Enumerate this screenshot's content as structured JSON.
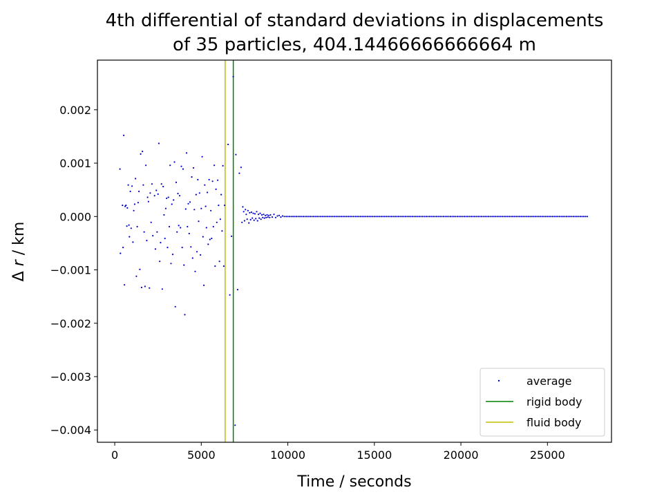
{
  "chart_data": {
    "type": "scatter",
    "title_lines": [
      "4th differential of standard deviations in displacements",
      "of 35 particles, 404.14466666666664 m"
    ],
    "xlabel": "Time / seconds",
    "ylabel_prefix": "Δ ",
    "ylabel_var": "r",
    "ylabel_suffix": " / km",
    "xlim": [
      -1000,
      28700
    ],
    "ylim": [
      -0.00423,
      0.00293
    ],
    "xticks": [
      0,
      5000,
      10000,
      15000,
      20000,
      25000
    ],
    "xtick_labels": [
      "0",
      "5000",
      "10000",
      "15000",
      "20000",
      "25000"
    ],
    "yticks": [
      0.002,
      0.001,
      0.0,
      -0.001,
      -0.002,
      -0.003,
      -0.004
    ],
    "ytick_labels": [
      "0.002",
      "0.001",
      "0.000",
      "−0.001",
      "−0.002",
      "−0.003",
      "−0.004"
    ],
    "grid": false,
    "legend_position": "lower-right",
    "series": [
      {
        "name": "average",
        "kind": "points",
        "color": "#0000cc",
        "points": [
          [
            300,
            0.00089
          ],
          [
            330,
            -0.00069
          ],
          [
            450,
            0.00021
          ],
          [
            480,
            -0.00058
          ],
          [
            520,
            0.00152
          ],
          [
            560,
            -0.00128
          ],
          [
            600,
            0.00019
          ],
          [
            650,
            0.00021
          ],
          [
            700,
            -0.00018
          ],
          [
            730,
            0.00016
          ],
          [
            780,
            0.00059
          ],
          [
            820,
            -0.00016
          ],
          [
            850,
            -0.00038
          ],
          [
            900,
            0.00047
          ],
          [
            950,
            -0.00022
          ],
          [
            1000,
            0.00057
          ],
          [
            1050,
            -0.00048
          ],
          [
            1100,
            0.00011
          ],
          [
            1150,
            0.00023
          ],
          [
            1200,
            0.00071
          ],
          [
            1250,
            -0.00112
          ],
          [
            1300,
            -0.00019
          ],
          [
            1350,
            0.00026
          ],
          [
            1400,
            0.00047
          ],
          [
            1450,
            -0.00099
          ],
          [
            1500,
            0.00117
          ],
          [
            1550,
            -0.00133
          ],
          [
            1600,
            0.00122
          ],
          [
            1650,
            0.00059
          ],
          [
            1700,
            -0.00029
          ],
          [
            1750,
            -0.00131
          ],
          [
            1800,
            0.00096
          ],
          [
            1850,
            -0.00045
          ],
          [
            1900,
            0.00036
          ],
          [
            1950,
            0.00028
          ],
          [
            2000,
            -0.00134
          ],
          [
            2050,
            0.00044
          ],
          [
            2100,
            -0.00011
          ],
          [
            2150,
            0.00061
          ],
          [
            2200,
            -0.00036
          ],
          [
            2300,
            0.00039
          ],
          [
            2350,
            -0.00061
          ],
          [
            2400,
            0.00049
          ],
          [
            2450,
            -0.00029
          ],
          [
            2500,
            0.00042
          ],
          [
            2550,
            0.00137
          ],
          [
            2600,
            -0.00084
          ],
          [
            2650,
            -0.00049
          ],
          [
            2700,
            0.00061
          ],
          [
            2750,
            -0.00136
          ],
          [
            2800,
            0.00056
          ],
          [
            2850,
            3e-05
          ],
          [
            2900,
            -0.00041
          ],
          [
            2950,
            0.00015
          ],
          [
            3000,
            0.00034
          ],
          [
            3050,
            -0.00058
          ],
          [
            3100,
            0.00036
          ],
          [
            3150,
            -0.00019
          ],
          [
            3200,
            0.00096
          ],
          [
            3250,
            -0.00088
          ],
          [
            3300,
            0.00023
          ],
          [
            3350,
            -0.00071
          ],
          [
            3400,
            0.00031
          ],
          [
            3450,
            0.00102
          ],
          [
            3500,
            -0.00169
          ],
          [
            3550,
            0.00064
          ],
          [
            3600,
            -0.00029
          ],
          [
            3650,
            0.00043
          ],
          [
            3700,
            -0.00017
          ],
          [
            3750,
            0.00039
          ],
          [
            3800,
            -0.00021
          ],
          [
            3850,
            0.00094
          ],
          [
            3900,
            -0.00058
          ],
          [
            3950,
            0.00089
          ],
          [
            4000,
            -0.00091
          ],
          [
            4050,
            -0.00184
          ],
          [
            4100,
            0.00014
          ],
          [
            4150,
            0.00119
          ],
          [
            4200,
            -0.00019
          ],
          [
            4250,
            0.00024
          ],
          [
            4300,
            -0.00032
          ],
          [
            4350,
            0.00027
          ],
          [
            4400,
            -0.00057
          ],
          [
            4450,
            0.00074
          ],
          [
            4500,
            -0.00078
          ],
          [
            4550,
            0.00091
          ],
          [
            4600,
            0.00013
          ],
          [
            4650,
            -0.00103
          ],
          [
            4700,
            0.00041
          ],
          [
            4750,
            -0.00066
          ],
          [
            4800,
            0.00069
          ],
          [
            4850,
            -9e-05
          ],
          [
            4900,
            0.00044
          ],
          [
            4950,
            -0.00072
          ],
          [
            5000,
            0.00015
          ],
          [
            5050,
            0.00112
          ],
          [
            5100,
            -0.00038
          ],
          [
            5150,
            -0.00129
          ],
          [
            5200,
            0.00059
          ],
          [
            5250,
            0.00019
          ],
          [
            5300,
            -0.00021
          ],
          [
            5350,
            0.00045
          ],
          [
            5400,
            -0.00052
          ],
          [
            5450,
            0.00069
          ],
          [
            5500,
            -0.00043
          ],
          [
            5550,
            0.00011
          ],
          [
            5600,
            -0.00041
          ],
          [
            5650,
            0.00066
          ],
          [
            5700,
            -0.00019
          ],
          [
            5750,
            0.00096
          ],
          [
            5800,
            -0.00093
          ],
          [
            5850,
            0.00051
          ],
          [
            5900,
            -0.00011
          ],
          [
            5950,
            0.00068
          ],
          [
            6000,
            0.00021
          ],
          [
            6050,
            -0.00084
          ],
          [
            6100,
            -5e-05
          ],
          [
            6150,
            0.00041
          ],
          [
            6200,
            -0.00027
          ],
          [
            6250,
            0.00095
          ],
          [
            6300,
            -0.00093
          ],
          [
            6350,
            0.00021
          ],
          [
            6550,
            0.00135
          ],
          [
            6650,
            -0.00147
          ],
          [
            6750,
            -0.00037
          ],
          [
            6850,
            0.00262
          ],
          [
            6950,
            -0.00391
          ],
          [
            7000,
            0.00116
          ],
          [
            7100,
            -0.00137
          ],
          [
            7200,
            0.00081
          ],
          [
            7300,
            0.00092
          ],
          [
            7350,
            -0.00011
          ],
          [
            7400,
            0.00018
          ],
          [
            7450,
            9e-05
          ],
          [
            7500,
            -8e-05
          ],
          [
            7550,
            0.00013
          ],
          [
            7600,
            4e-05
          ],
          [
            7650,
            -5e-05
          ],
          [
            7700,
            0.00011
          ],
          [
            7750,
            -0.00012
          ],
          [
            7800,
            7e-05
          ],
          [
            7850,
            -6e-05
          ],
          [
            7900,
            8e-05
          ],
          [
            7950,
            -3e-05
          ],
          [
            8000,
            6e-05
          ],
          [
            8050,
            -7e-05
          ],
          [
            8100,
            5e-05
          ],
          [
            8150,
            -4e-05
          ],
          [
            8200,
            9e-05
          ],
          [
            8250,
            -8e-05
          ],
          [
            8300,
            4e-05
          ],
          [
            8350,
            -3e-05
          ],
          [
            8400,
            6e-05
          ],
          [
            8450,
            -5e-05
          ],
          [
            8500,
            3e-05
          ],
          [
            8550,
            -2e-05
          ],
          [
            8600,
            4e-05
          ],
          [
            8650,
            -3e-05
          ],
          [
            8700,
            2e-05
          ],
          [
            8750,
            -2e-05
          ],
          [
            8800,
            3e-05
          ],
          [
            8850,
            -1e-05
          ],
          [
            8900,
            2e-05
          ],
          [
            8950,
            -2e-05
          ],
          [
            9000,
            3e-05
          ],
          [
            9100,
            -1e-05
          ],
          [
            9200,
            4e-05
          ],
          [
            9300,
            -2e-05
          ],
          [
            9400,
            1e-05
          ],
          [
            9500,
            2e-05
          ],
          [
            9600,
            -1e-05
          ],
          [
            9700,
            1e-05
          ]
        ],
        "flat_from": 9800,
        "flat_to": 27300,
        "flat_step": 100,
        "flat_value": 0.0
      },
      {
        "name": "rigid body",
        "kind": "vline",
        "color": "#008000",
        "x": 6850
      },
      {
        "name": "fluid body",
        "kind": "vline",
        "color": "#bfbf00",
        "x": 6380
      }
    ]
  }
}
